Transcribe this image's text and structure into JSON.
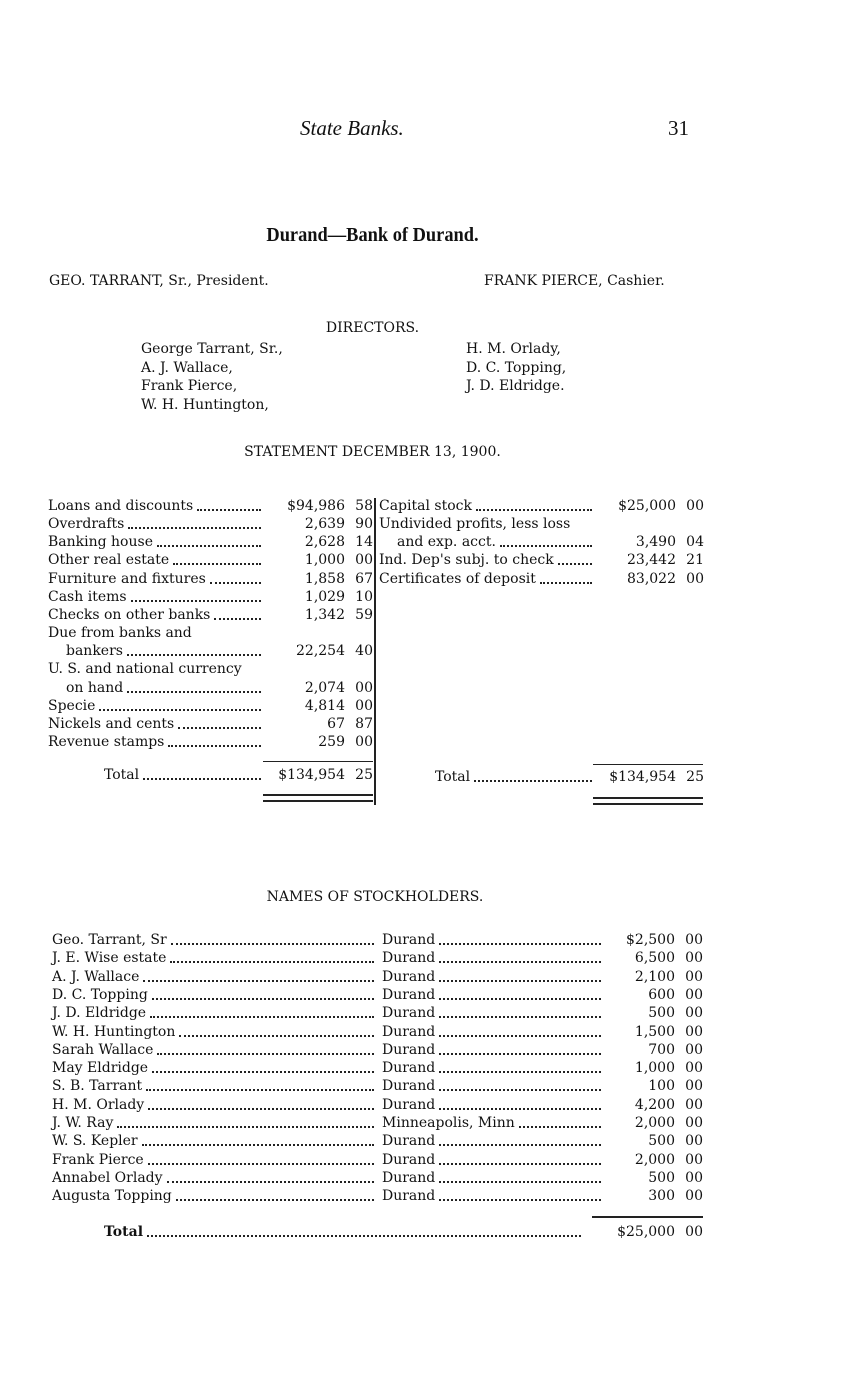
{
  "header": {
    "running_title": "State Banks.",
    "page_number": "31"
  },
  "bank_title": "Durand—Bank of Durand.",
  "officers": {
    "president": "GEO. TARRANT, Sr., President.",
    "cashier": "FRANK PIERCE, Cashier."
  },
  "directors": {
    "heading": "DIRECTORS.",
    "left": [
      "George Tarrant, Sr.,",
      "A. J. Wallace,",
      "Frank Pierce,",
      "W. H. Huntington,"
    ],
    "right": [
      "H. M. Orlady,",
      "D. C. Topping,",
      "J. D. Eldridge."
    ]
  },
  "statement": {
    "heading": "STATEMENT DECEMBER 13, 1900.",
    "resources": [
      {
        "label": "Loans and discounts",
        "dollars": "$94,986",
        "cents": "58"
      },
      {
        "label": "Overdrafts",
        "dollars": "2,639",
        "cents": "90"
      },
      {
        "label": "Banking house",
        "dollars": "2,628",
        "cents": "14"
      },
      {
        "label": "Other real estate",
        "dollars": "1,000",
        "cents": "00"
      },
      {
        "label": "Furniture and fixtures",
        "dollars": "1,858",
        "cents": "67"
      },
      {
        "label": "Cash items",
        "dollars": "1,029",
        "cents": "10"
      },
      {
        "label": "Checks on other banks",
        "dollars": "1,342",
        "cents": "59"
      },
      {
        "label": "Due from banks and",
        "cont": "bankers",
        "dollars": "22,254",
        "cents": "40"
      },
      {
        "label": "U. S. and national currency",
        "cont": "on hand",
        "dollars": "2,074",
        "cents": "00"
      },
      {
        "label": "Specie",
        "dollars": "4,814",
        "cents": "00"
      },
      {
        "label": "Nickels and cents",
        "dollars": "67",
        "cents": "87"
      },
      {
        "label": "Revenue stamps",
        "dollars": "259",
        "cents": "00"
      }
    ],
    "resources_total": {
      "label": "Total",
      "dollars": "$134,954",
      "cents": "25"
    },
    "liabilities": [
      {
        "label": "Capital stock",
        "dollars": "$25,000",
        "cents": "00"
      },
      {
        "label": "Undivided profits, less loss",
        "cont": "and exp. acct.",
        "dollars": "3,490",
        "cents": "04"
      },
      {
        "label": "Ind. Dep's subj. to check",
        "dollars": "23,442",
        "cents": "21"
      },
      {
        "label": "Certificates of deposit",
        "dollars": "83,022",
        "cents": "00"
      }
    ],
    "liabilities_total": {
      "label": "Total",
      "dollars": "$134,954",
      "cents": "25"
    }
  },
  "stockholders": {
    "heading": "NAMES OF STOCKHOLDERS.",
    "rows": [
      {
        "name": "Geo. Tarrant, Sr",
        "residence": "Durand",
        "dollars": "$2,500",
        "cents": "00"
      },
      {
        "name": "J. E. Wise estate",
        "residence": "Durand",
        "dollars": "6,500",
        "cents": "00"
      },
      {
        "name": "A. J. Wallace",
        "residence": "Durand",
        "dollars": "2,100",
        "cents": "00"
      },
      {
        "name": "D. C. Topping",
        "residence": "Durand",
        "dollars": "600",
        "cents": "00"
      },
      {
        "name": "J. D. Eldridge",
        "residence": "Durand",
        "dollars": "500",
        "cents": "00"
      },
      {
        "name": "W. H. Huntington",
        "residence": "Durand",
        "dollars": "1,500",
        "cents": "00"
      },
      {
        "name": "Sarah Wallace",
        "residence": "Durand",
        "dollars": "700",
        "cents": "00"
      },
      {
        "name": "May Eldridge",
        "residence": "Durand",
        "dollars": "1,000",
        "cents": "00"
      },
      {
        "name": "S. B. Tarrant",
        "residence": "Durand",
        "dollars": "100",
        "cents": "00"
      },
      {
        "name": "H. M. Orlady",
        "residence": "Durand",
        "dollars": "4,200",
        "cents": "00"
      },
      {
        "name": "J. W. Ray",
        "residence": "Minneapolis, Minn",
        "dollars": "2,000",
        "cents": "00"
      },
      {
        "name": "W. S. Kepler",
        "residence": "Durand",
        "dollars": "500",
        "cents": "00"
      },
      {
        "name": "Frank Pierce",
        "residence": "Durand",
        "dollars": "2,000",
        "cents": "00"
      },
      {
        "name": "Annabel Orlady",
        "residence": "Durand",
        "dollars": "500",
        "cents": "00"
      },
      {
        "name": "Augusta Topping",
        "residence": "Durand",
        "dollars": "300",
        "cents": "00"
      }
    ],
    "total": {
      "label": "Total",
      "dollars": "$25,000",
      "cents": "00"
    }
  }
}
